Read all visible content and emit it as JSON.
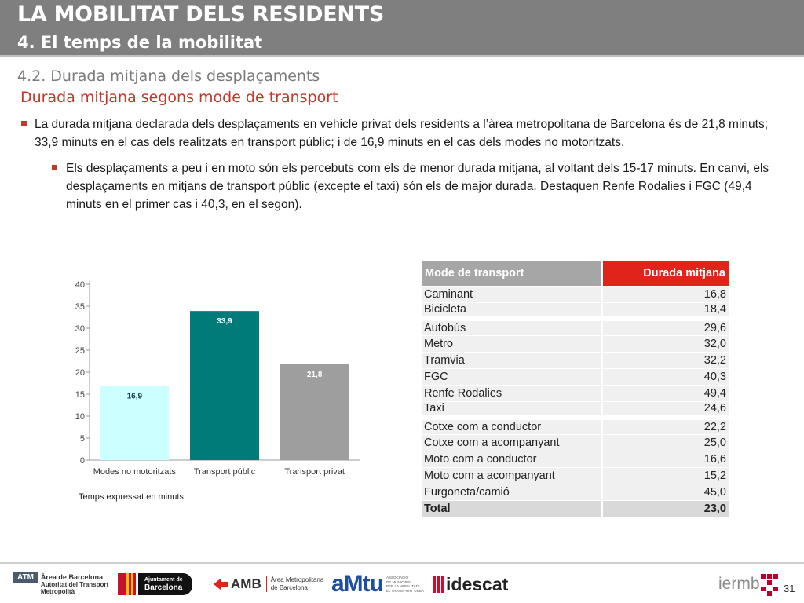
{
  "header": {
    "title": "LA MOBILITAT DELS RESIDENTS",
    "subtitle": "4. El temps de la mobilitat"
  },
  "section": {
    "title": "4.2. Durada mitjana dels desplaçaments",
    "subtitle": "Durada mitjana segons mode de transport"
  },
  "bullets": [
    "La durada mitjana declarada dels desplaçaments en vehicle privat dels residents a l’àrea metropolitana de Barcelona és de 21,8 minuts; 33,9 minuts en el cas dels realitzats en transport públic; i de 16,9 minuts en el cas dels modes no motoritzats.",
    "Els desplaçaments a peu i en moto són els percebuts com els de menor durada mitjana, al voltant dels 15-17 minuts. En canvi, els desplaçaments en mitjans de transport públic (excepte el taxi) són els de major durada. Destaquen Renfe Rodalies i FGC (49,4 minuts en el primer cas i 40,3, en el segon)."
  ],
  "chart_data": {
    "type": "bar",
    "categories": [
      "Modes no motoritzats",
      "Transport públic",
      "Transport privat"
    ],
    "values": [
      16.9,
      33.9,
      21.8
    ],
    "value_labels": [
      "16,9",
      "33,9",
      "21,8"
    ],
    "colors": [
      "#ccffff",
      "#007b7a",
      "#9e9e9e"
    ],
    "label_colors": [
      "#1a3a5a",
      "#ffffff",
      "#ffffff"
    ],
    "yticks": [
      0,
      5,
      10,
      15,
      20,
      25,
      30,
      35,
      40
    ],
    "ylim": [
      0,
      40
    ],
    "grid": false,
    "note": "Temps expressat en minuts"
  },
  "table": {
    "headers": [
      "Mode de transport",
      "Durada mitjana"
    ],
    "header_colors": [
      "#a6a6a6",
      "#e0231b"
    ],
    "rows": [
      {
        "mode": "Caminant",
        "value": "16,8",
        "gap": false
      },
      {
        "mode": "Bicicleta",
        "value": "18,4",
        "gap": false
      },
      {
        "mode": "Autobús",
        "value": "29,6",
        "gap": true
      },
      {
        "mode": "Metro",
        "value": "32,0",
        "gap": false
      },
      {
        "mode": "Tramvia",
        "value": "32,2",
        "gap": false
      },
      {
        "mode": "FGC",
        "value": "40,3",
        "gap": false
      },
      {
        "mode": "Renfe Rodalies",
        "value": "49,4",
        "gap": false
      },
      {
        "mode": "Taxi",
        "value": "24,6",
        "gap": false
      },
      {
        "mode": "Cotxe com a conductor",
        "value": "22,2",
        "gap": true
      },
      {
        "mode": "Cotxe com a acompanyant",
        "value": "25,0",
        "gap": false
      },
      {
        "mode": "Moto com a conductor",
        "value": "16,6",
        "gap": false
      },
      {
        "mode": "Moto com a acompanyant",
        "value": "15,2",
        "gap": false
      },
      {
        "mode": "Furgoneta/camió",
        "value": "45,0",
        "gap": false
      }
    ],
    "total": {
      "mode": "Total",
      "value": "23,0"
    }
  },
  "footer": {
    "atm": {
      "badge": "ATM",
      "line1": "Àrea de Barcelona",
      "line2": "Autoritat del Transport",
      "line3": "Metropolità"
    },
    "ajuntament": {
      "line1": "Ajuntament de",
      "line2": "Barcelona"
    },
    "amb": {
      "name": "AMB",
      "line1": "Àrea Metropolitana",
      "line2": "de Barcelona"
    },
    "amtu": {
      "name": "aMtu",
      "line1": "ASSOCIACIÓ",
      "line2": "DE MUNICIPIS",
      "line3": "PER LA MOBILITAT I",
      "line4": "EL TRANSPORT URBÀ"
    },
    "idescat": {
      "name": "idescat"
    },
    "iermb": {
      "name": "iermb"
    },
    "page_number": "31"
  }
}
